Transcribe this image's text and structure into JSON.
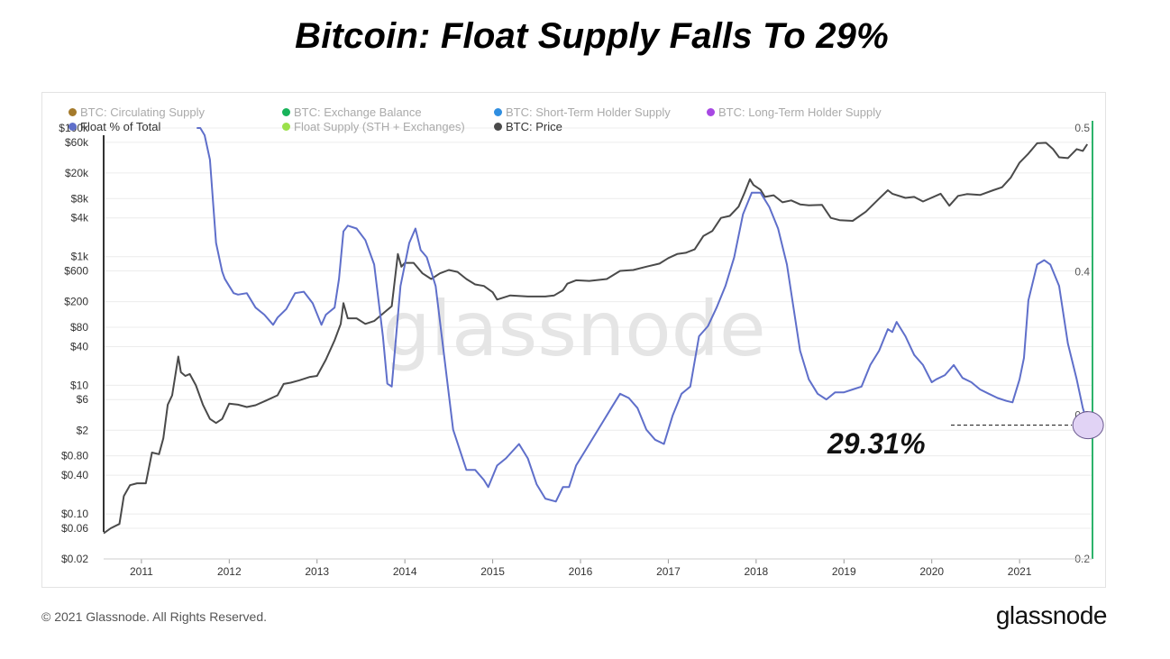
{
  "title": "Bitcoin: Float Supply Falls To 29%",
  "footer": {
    "copyright": "© 2021 Glassnode. All Rights Reserved.",
    "logo": "glassnode"
  },
  "watermark": "glassnode",
  "callout": {
    "text": "29.31%",
    "value": 0.2931
  },
  "colors": {
    "price": "#4a4a4a",
    "float_pct": "#5f6fca",
    "callout_fill": "#e1d3f5",
    "right_axis_line": "#2db36b"
  },
  "legend": [
    {
      "label": "BTC: Circulating Supply",
      "color": "#a47a2b",
      "active": false
    },
    {
      "label": "BTC: Exchange Balance",
      "color": "#18b35a",
      "active": false
    },
    {
      "label": "BTC: Short-Term Holder Supply",
      "color": "#2f8ee0",
      "active": false
    },
    {
      "label": "BTC: Long-Term Holder Supply",
      "color": "#a748e3",
      "active": false
    },
    {
      "label": "Float % of Total",
      "color": "#5f6fca",
      "active": true
    },
    {
      "label": "Float Supply (STH + Exchanges)",
      "color": "#9be14a",
      "active": false
    },
    {
      "label": "BTC: Price",
      "color": "#4a4a4a",
      "active": true
    }
  ],
  "chart_data": {
    "type": "line",
    "x_ticks": [
      "2011",
      "2012",
      "2013",
      "2014",
      "2015",
      "2016",
      "2017",
      "2018",
      "2019",
      "2020",
      "2021"
    ],
    "xlim": [
      2010.57,
      2021.83
    ],
    "y_left": {
      "scale": "log",
      "ylim": [
        0.02,
        100000
      ],
      "ticks": [
        {
          "value": 100000,
          "label": "$100k"
        },
        {
          "value": 60000,
          "label": "$60k"
        },
        {
          "value": 20000,
          "label": "$20k"
        },
        {
          "value": 8000,
          "label": "$8k"
        },
        {
          "value": 4000,
          "label": "$4k"
        },
        {
          "value": 1000,
          "label": "$1k"
        },
        {
          "value": 600,
          "label": "$600"
        },
        {
          "value": 200,
          "label": "$200"
        },
        {
          "value": 80,
          "label": "$80"
        },
        {
          "value": 40,
          "label": "$40"
        },
        {
          "value": 10,
          "label": "$10"
        },
        {
          "value": 6,
          "label": "$6"
        },
        {
          "value": 2,
          "label": "$2"
        },
        {
          "value": 0.8,
          "label": "$0.80"
        },
        {
          "value": 0.4,
          "label": "$0.40"
        },
        {
          "value": 0.1,
          "label": "$0.10"
        },
        {
          "value": 0.06,
          "label": "$0.06"
        },
        {
          "value": 0.02,
          "label": "$0.02"
        }
      ]
    },
    "y_right": {
      "scale": "linear",
      "ylim": [
        0.2,
        0.5
      ],
      "ticks": [
        {
          "value": 0.5,
          "label": "0.5"
        },
        {
          "value": 0.4,
          "label": "0.4"
        },
        {
          "value": 0.3,
          "label": "0.3"
        },
        {
          "value": 0.2,
          "label": "0.2"
        }
      ]
    },
    "series": [
      {
        "name": "BTC: Price",
        "axis": "left",
        "x": [
          2010.57,
          2010.65,
          2010.75,
          2010.8,
          2010.87,
          2010.95,
          2011.05,
          2011.12,
          2011.2,
          2011.25,
          2011.3,
          2011.35,
          2011.42,
          2011.45,
          2011.5,
          2011.55,
          2011.62,
          2011.7,
          2011.78,
          2011.85,
          2011.92,
          2012.0,
          2012.1,
          2012.2,
          2012.3,
          2012.42,
          2012.55,
          2012.62,
          2012.7,
          2012.8,
          2012.92,
          2013.0,
          2013.1,
          2013.2,
          2013.27,
          2013.3,
          2013.35,
          2013.45,
          2013.55,
          2013.65,
          2013.75,
          2013.85,
          2013.92,
          2013.96,
          2014.0,
          2014.1,
          2014.2,
          2014.3,
          2014.4,
          2014.5,
          2014.6,
          2014.7,
          2014.8,
          2014.9,
          2015.0,
          2015.05,
          2015.2,
          2015.4,
          2015.6,
          2015.7,
          2015.8,
          2015.85,
          2015.95,
          2016.1,
          2016.3,
          2016.45,
          2016.6,
          2016.75,
          2016.9,
          2017.0,
          2017.1,
          2017.2,
          2017.3,
          2017.4,
          2017.5,
          2017.6,
          2017.7,
          2017.8,
          2017.87,
          2017.93,
          2017.97,
          2018.05,
          2018.1,
          2018.2,
          2018.3,
          2018.4,
          2018.5,
          2018.6,
          2018.75,
          2018.85,
          2018.95,
          2019.1,
          2019.25,
          2019.4,
          2019.5,
          2019.55,
          2019.7,
          2019.8,
          2019.9,
          2020.1,
          2020.2,
          2020.3,
          2020.4,
          2020.55,
          2020.7,
          2020.8,
          2020.9,
          2021.0,
          2021.1,
          2021.2,
          2021.3,
          2021.38,
          2021.45,
          2021.55,
          2021.65,
          2021.72,
          2021.77
        ],
        "values": [
          0.05,
          0.06,
          0.07,
          0.19,
          0.28,
          0.3,
          0.3,
          0.9,
          0.85,
          1.5,
          5.0,
          7.0,
          28,
          16,
          14,
          15,
          10,
          5,
          3,
          2.6,
          3.0,
          5.2,
          5.0,
          4.6,
          4.9,
          5.8,
          7.0,
          10.5,
          11.0,
          12.0,
          13.5,
          14,
          25,
          50,
          90,
          190,
          110,
          110,
          90,
          100,
          130,
          170,
          1100,
          700,
          800,
          800,
          550,
          450,
          550,
          620,
          580,
          450,
          370,
          350,
          280,
          215,
          250,
          240,
          240,
          250,
          300,
          380,
          430,
          420,
          450,
          600,
          620,
          700,
          780,
          950,
          1100,
          1150,
          1300,
          2100,
          2500,
          4000,
          4300,
          6000,
          10000,
          16000,
          13000,
          11000,
          8500,
          9000,
          7000,
          7500,
          6500,
          6300,
          6400,
          4000,
          3700,
          3600,
          5000,
          8000,
          10800,
          9500,
          8200,
          8500,
          7200,
          9500,
          6200,
          8800,
          9400,
          9100,
          10800,
          12000,
          17000,
          29000,
          40000,
          58000,
          59000,
          47000,
          35000,
          34000,
          47000,
          44000,
          56000
        ]
      },
      {
        "name": "Float % of Total",
        "axis": "right",
        "x": [
          2011.63,
          2011.67,
          2011.72,
          2011.78,
          2011.85,
          2011.92,
          2011.95,
          2012.0,
          2012.05,
          2012.1,
          2012.2,
          2012.3,
          2012.4,
          2012.5,
          2012.55,
          2012.65,
          2012.75,
          2012.85,
          2012.95,
          2013.05,
          2013.1,
          2013.2,
          2013.25,
          2013.3,
          2013.35,
          2013.45,
          2013.55,
          2013.65,
          2013.75,
          2013.8,
          2013.85,
          2013.95,
          2014.05,
          2014.12,
          2014.18,
          2014.25,
          2014.35,
          2014.45,
          2014.55,
          2014.7,
          2014.8,
          2014.9,
          2014.95,
          2015.05,
          2015.15,
          2015.3,
          2015.4,
          2015.5,
          2015.6,
          2015.72,
          2015.8,
          2015.87,
          2015.95,
          2016.05,
          2016.15,
          2016.25,
          2016.35,
          2016.45,
          2016.55,
          2016.65,
          2016.75,
          2016.85,
          2016.95,
          2017.05,
          2017.15,
          2017.25,
          2017.35,
          2017.45,
          2017.55,
          2017.65,
          2017.75,
          2017.85,
          2017.95,
          2018.05,
          2018.15,
          2018.25,
          2018.35,
          2018.5,
          2018.6,
          2018.7,
          2018.8,
          2018.9,
          2019.0,
          2019.1,
          2019.2,
          2019.3,
          2019.4,
          2019.5,
          2019.55,
          2019.6,
          2019.7,
          2019.8,
          2019.9,
          2020.0,
          2020.05,
          2020.15,
          2020.25,
          2020.35,
          2020.45,
          2020.55,
          2020.65,
          2020.75,
          2020.85,
          2020.92,
          2021.0,
          2021.05,
          2021.1,
          2021.2,
          2021.28,
          2021.35,
          2021.45,
          2021.55,
          2021.65,
          2021.72,
          2021.78
        ],
        "values": [
          0.5,
          0.5,
          0.495,
          0.478,
          0.42,
          0.4,
          0.395,
          0.39,
          0.385,
          0.384,
          0.385,
          0.375,
          0.37,
          0.363,
          0.368,
          0.374,
          0.385,
          0.386,
          0.378,
          0.363,
          0.37,
          0.375,
          0.395,
          0.428,
          0.432,
          0.43,
          0.422,
          0.405,
          0.355,
          0.322,
          0.32,
          0.39,
          0.42,
          0.43,
          0.415,
          0.41,
          0.39,
          0.34,
          0.29,
          0.262,
          0.262,
          0.255,
          0.25,
          0.265,
          0.27,
          0.28,
          0.27,
          0.252,
          0.242,
          0.24,
          0.25,
          0.25,
          0.265,
          0.275,
          0.285,
          0.295,
          0.305,
          0.315,
          0.312,
          0.305,
          0.29,
          0.283,
          0.28,
          0.3,
          0.315,
          0.32,
          0.355,
          0.362,
          0.375,
          0.39,
          0.41,
          0.44,
          0.455,
          0.455,
          0.445,
          0.43,
          0.405,
          0.345,
          0.325,
          0.315,
          0.311,
          0.316,
          0.316,
          0.318,
          0.32,
          0.335,
          0.345,
          0.36,
          0.358,
          0.365,
          0.355,
          0.342,
          0.335,
          0.323,
          0.325,
          0.328,
          0.335,
          0.326,
          0.323,
          0.318,
          0.315,
          0.312,
          0.31,
          0.309,
          0.325,
          0.34,
          0.38,
          0.405,
          0.408,
          0.405,
          0.39,
          0.35,
          0.325,
          0.305,
          0.2931
        ]
      }
    ],
    "grid": true
  }
}
